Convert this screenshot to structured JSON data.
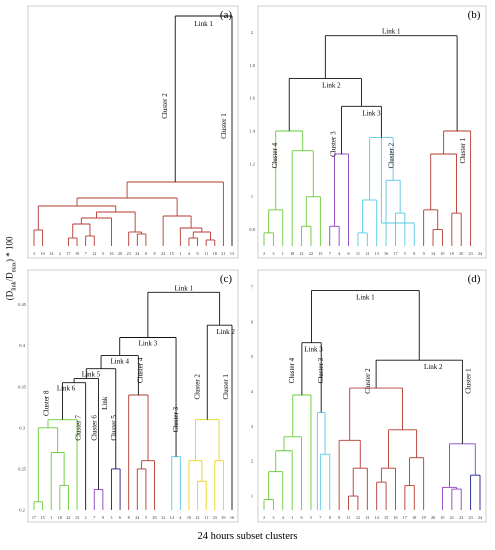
{
  "caption": "24 hours subset clusters",
  "ylabel": "(D_link/D_max) * 100",
  "colors": {
    "dark_red": "#b5382c",
    "black": "#111111",
    "green": "#66cc33",
    "purple": "#8a3fc0",
    "cyan": "#58c8e8",
    "navy": "#1a1f8a",
    "yellow": "#e6d21a"
  },
  "chart_data": [
    {
      "type": "dendrogram",
      "panel": "(a)",
      "leaves": [
        "3",
        "10",
        "14",
        "2",
        "17",
        "19",
        "7",
        "12",
        "5",
        "16",
        "20",
        "23",
        "24",
        "6",
        "8",
        "22",
        "15",
        "1",
        "4",
        "9",
        "11",
        "18",
        "21",
        "13"
      ],
      "yticks": [],
      "links": [
        {
          "label": "Link 1",
          "height": 95
        }
      ],
      "clusters": [
        {
          "label": "Cluster 2",
          "color": "dark_red"
        },
        {
          "label": "Cluster 1",
          "color": "dark_red"
        }
      ]
    },
    {
      "type": "dendrogram",
      "panel": "(b)",
      "leaves": [
        "2",
        "3",
        "1",
        "18",
        "21",
        "22",
        "15",
        "7",
        "4",
        "6",
        "11",
        "12",
        "13",
        "16",
        "17",
        "5",
        "8",
        "9",
        "14",
        "10",
        "19",
        "20",
        "23",
        "24"
      ],
      "yticks": [
        "0.8",
        "1",
        "1.2",
        "1.4",
        "1.6",
        "1.8",
        "2"
      ],
      "ylim": [
        0.7,
        2.1
      ],
      "links": [
        {
          "label": "Link 1",
          "height": 1.98
        },
        {
          "label": "Link 2",
          "height": 1.72
        },
        {
          "label": "Link 3",
          "height": 1.55
        }
      ],
      "clusters": [
        {
          "label": "Cluster 4",
          "color": "green"
        },
        {
          "label": "Cluster 3",
          "color": "purple"
        },
        {
          "label": "Cluster 2",
          "color": "cyan"
        },
        {
          "label": "Cluster 1",
          "color": "dark_red"
        }
      ]
    },
    {
      "type": "dendrogram",
      "panel": "(c)",
      "leaves": [
        "17",
        "15",
        "1",
        "18",
        "22",
        "13",
        "2",
        "7",
        "9",
        "3",
        "6",
        "8",
        "24",
        "5",
        "20",
        "12",
        "14",
        "4",
        "10",
        "21",
        "11",
        "23",
        "19",
        "16"
      ],
      "yticks": [
        "0.2",
        "0.25",
        "0.3",
        "0.35",
        "0.4",
        "0.45"
      ],
      "ylim": [
        0.2,
        0.48
      ],
      "links": [
        {
          "label": "Link 1",
          "height": 0.465
        },
        {
          "label": "Link 2",
          "height": 0.425
        },
        {
          "label": "Link 3",
          "height": 0.41
        },
        {
          "label": "Link 4",
          "height": 0.388
        },
        {
          "label": "Link 5",
          "height": 0.372
        },
        {
          "label": "Link 6",
          "height": 0.355
        }
      ],
      "clusters": [
        {
          "label": "Cluster 8",
          "color": "green"
        },
        {
          "label": "Cluster 7",
          "color": "black"
        },
        {
          "label": "Cluster 6",
          "color": "black"
        },
        {
          "label": "Link",
          "color": "black"
        },
        {
          "label": "Cluster 5",
          "color": "navy"
        },
        {
          "label": "Cluster 4",
          "color": "dark_red"
        },
        {
          "label": "Cluster 3",
          "color": "cyan"
        },
        {
          "label": "Cluster 2",
          "color": "yellow"
        },
        {
          "label": "Cluster 1",
          "color": "yellow"
        }
      ]
    },
    {
      "type": "dendrogram",
      "panel": "(d)",
      "leaves": [
        "2",
        "3",
        "4",
        "1",
        "6",
        "5",
        "7",
        "8",
        "9",
        "11",
        "12",
        "13",
        "14",
        "15",
        "16",
        "17",
        "18",
        "19",
        "20",
        "10",
        "21",
        "22",
        "23",
        "24"
      ],
      "yticks": [
        "1",
        "2",
        "3",
        "4",
        "5",
        "6",
        "7"
      ],
      "ylim": [
        0.6,
        7.2
      ],
      "links": [
        {
          "label": "Link 1",
          "height": 6.9
        },
        {
          "label": "Link 2",
          "height": 4.9
        },
        {
          "label": "Link 3",
          "height": 5.4
        }
      ],
      "clusters": [
        {
          "label": "Cluster 4",
          "color": "green"
        },
        {
          "label": "Cluster 3",
          "color": "cyan"
        },
        {
          "label": "Cluster 2",
          "color": "dark_red"
        },
        {
          "label": "Cluster 1",
          "color": "purple"
        }
      ]
    }
  ]
}
